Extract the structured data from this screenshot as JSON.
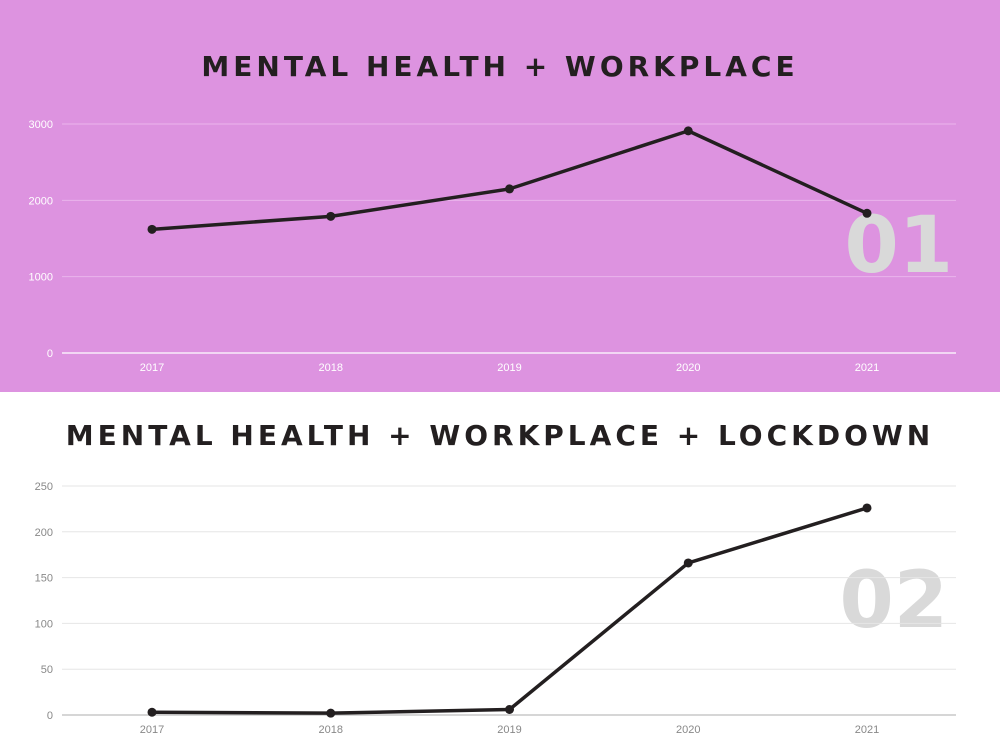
{
  "chart_data": [
    {
      "type": "line",
      "title": "MENTAL HEALTH + WORKPLACE",
      "panel_number": "01",
      "categories": [
        "2017",
        "2018",
        "2019",
        "2020",
        "2021"
      ],
      "yticks": [
        "0",
        "1000",
        "2000",
        "3000"
      ],
      "ylim": [
        0,
        3000
      ],
      "grid": true,
      "series": [
        {
          "values": [
            1620,
            1790,
            2150,
            2910,
            1830
          ]
        }
      ],
      "colors": {
        "background": "#dd93e0",
        "line": "#231f20",
        "grid": "#eab5ec",
        "tick_text": "#ffffff",
        "number": "#d9d9d9"
      }
    },
    {
      "type": "line",
      "title": "MENTAL HEALTH + WORKPLACE + LOCKDOWN",
      "panel_number": "02",
      "categories": [
        "2017",
        "2018",
        "2019",
        "2020",
        "2021"
      ],
      "yticks": [
        "0",
        "50",
        "100",
        "150",
        "200",
        "250"
      ],
      "ylim": [
        0,
        250
      ],
      "grid": true,
      "series": [
        {
          "values": [
            3,
            2,
            6,
            166,
            226
          ]
        }
      ],
      "colors": {
        "background": "#ffffff",
        "line": "#231f20",
        "grid": "#e6e6e6",
        "tick_text": "#888888",
        "number": "#d9d9d9"
      }
    }
  ]
}
